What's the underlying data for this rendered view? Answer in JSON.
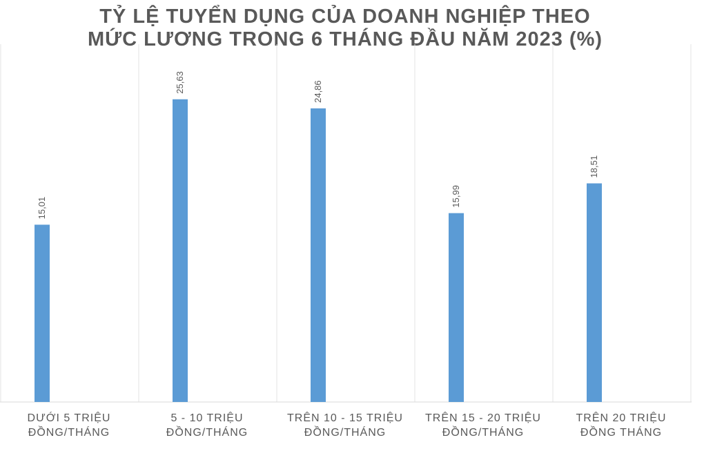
{
  "chart_data": {
    "type": "bar",
    "title_lines": [
      "TỶ LỆ TUYỂN DỤNG CỦA DOANH NGHIỆP THEO",
      "MỨC LƯƠNG TRONG 6 THÁNG ĐẦU NĂM 2023 (%)"
    ],
    "categories": [
      [
        "DƯỚI 5 TRIỆU",
        "ĐỒNG/THÁNG"
      ],
      [
        "5 - 10 TRIỆU",
        "ĐỒNG/THÁNG"
      ],
      [
        "TRÊN 10 - 15 TRIỆU",
        "ĐỒNG/THÁNG"
      ],
      [
        "TRÊN 15 - 20 TRIỆU",
        "ĐỒNG/THÁNG"
      ],
      [
        "TRÊN 20 TRIỆU",
        "ĐỒNG THÁNG"
      ]
    ],
    "values": [
      15.01,
      25.63,
      24.86,
      15.99,
      18.51
    ],
    "data_labels": [
      "15,01",
      "25,63",
      "24,86",
      "15,99",
      "18,51"
    ],
    "ylim": [
      0,
      30
    ],
    "bar_color": "#5b9bd5",
    "grid": "vertical category separators",
    "legend": "none"
  }
}
